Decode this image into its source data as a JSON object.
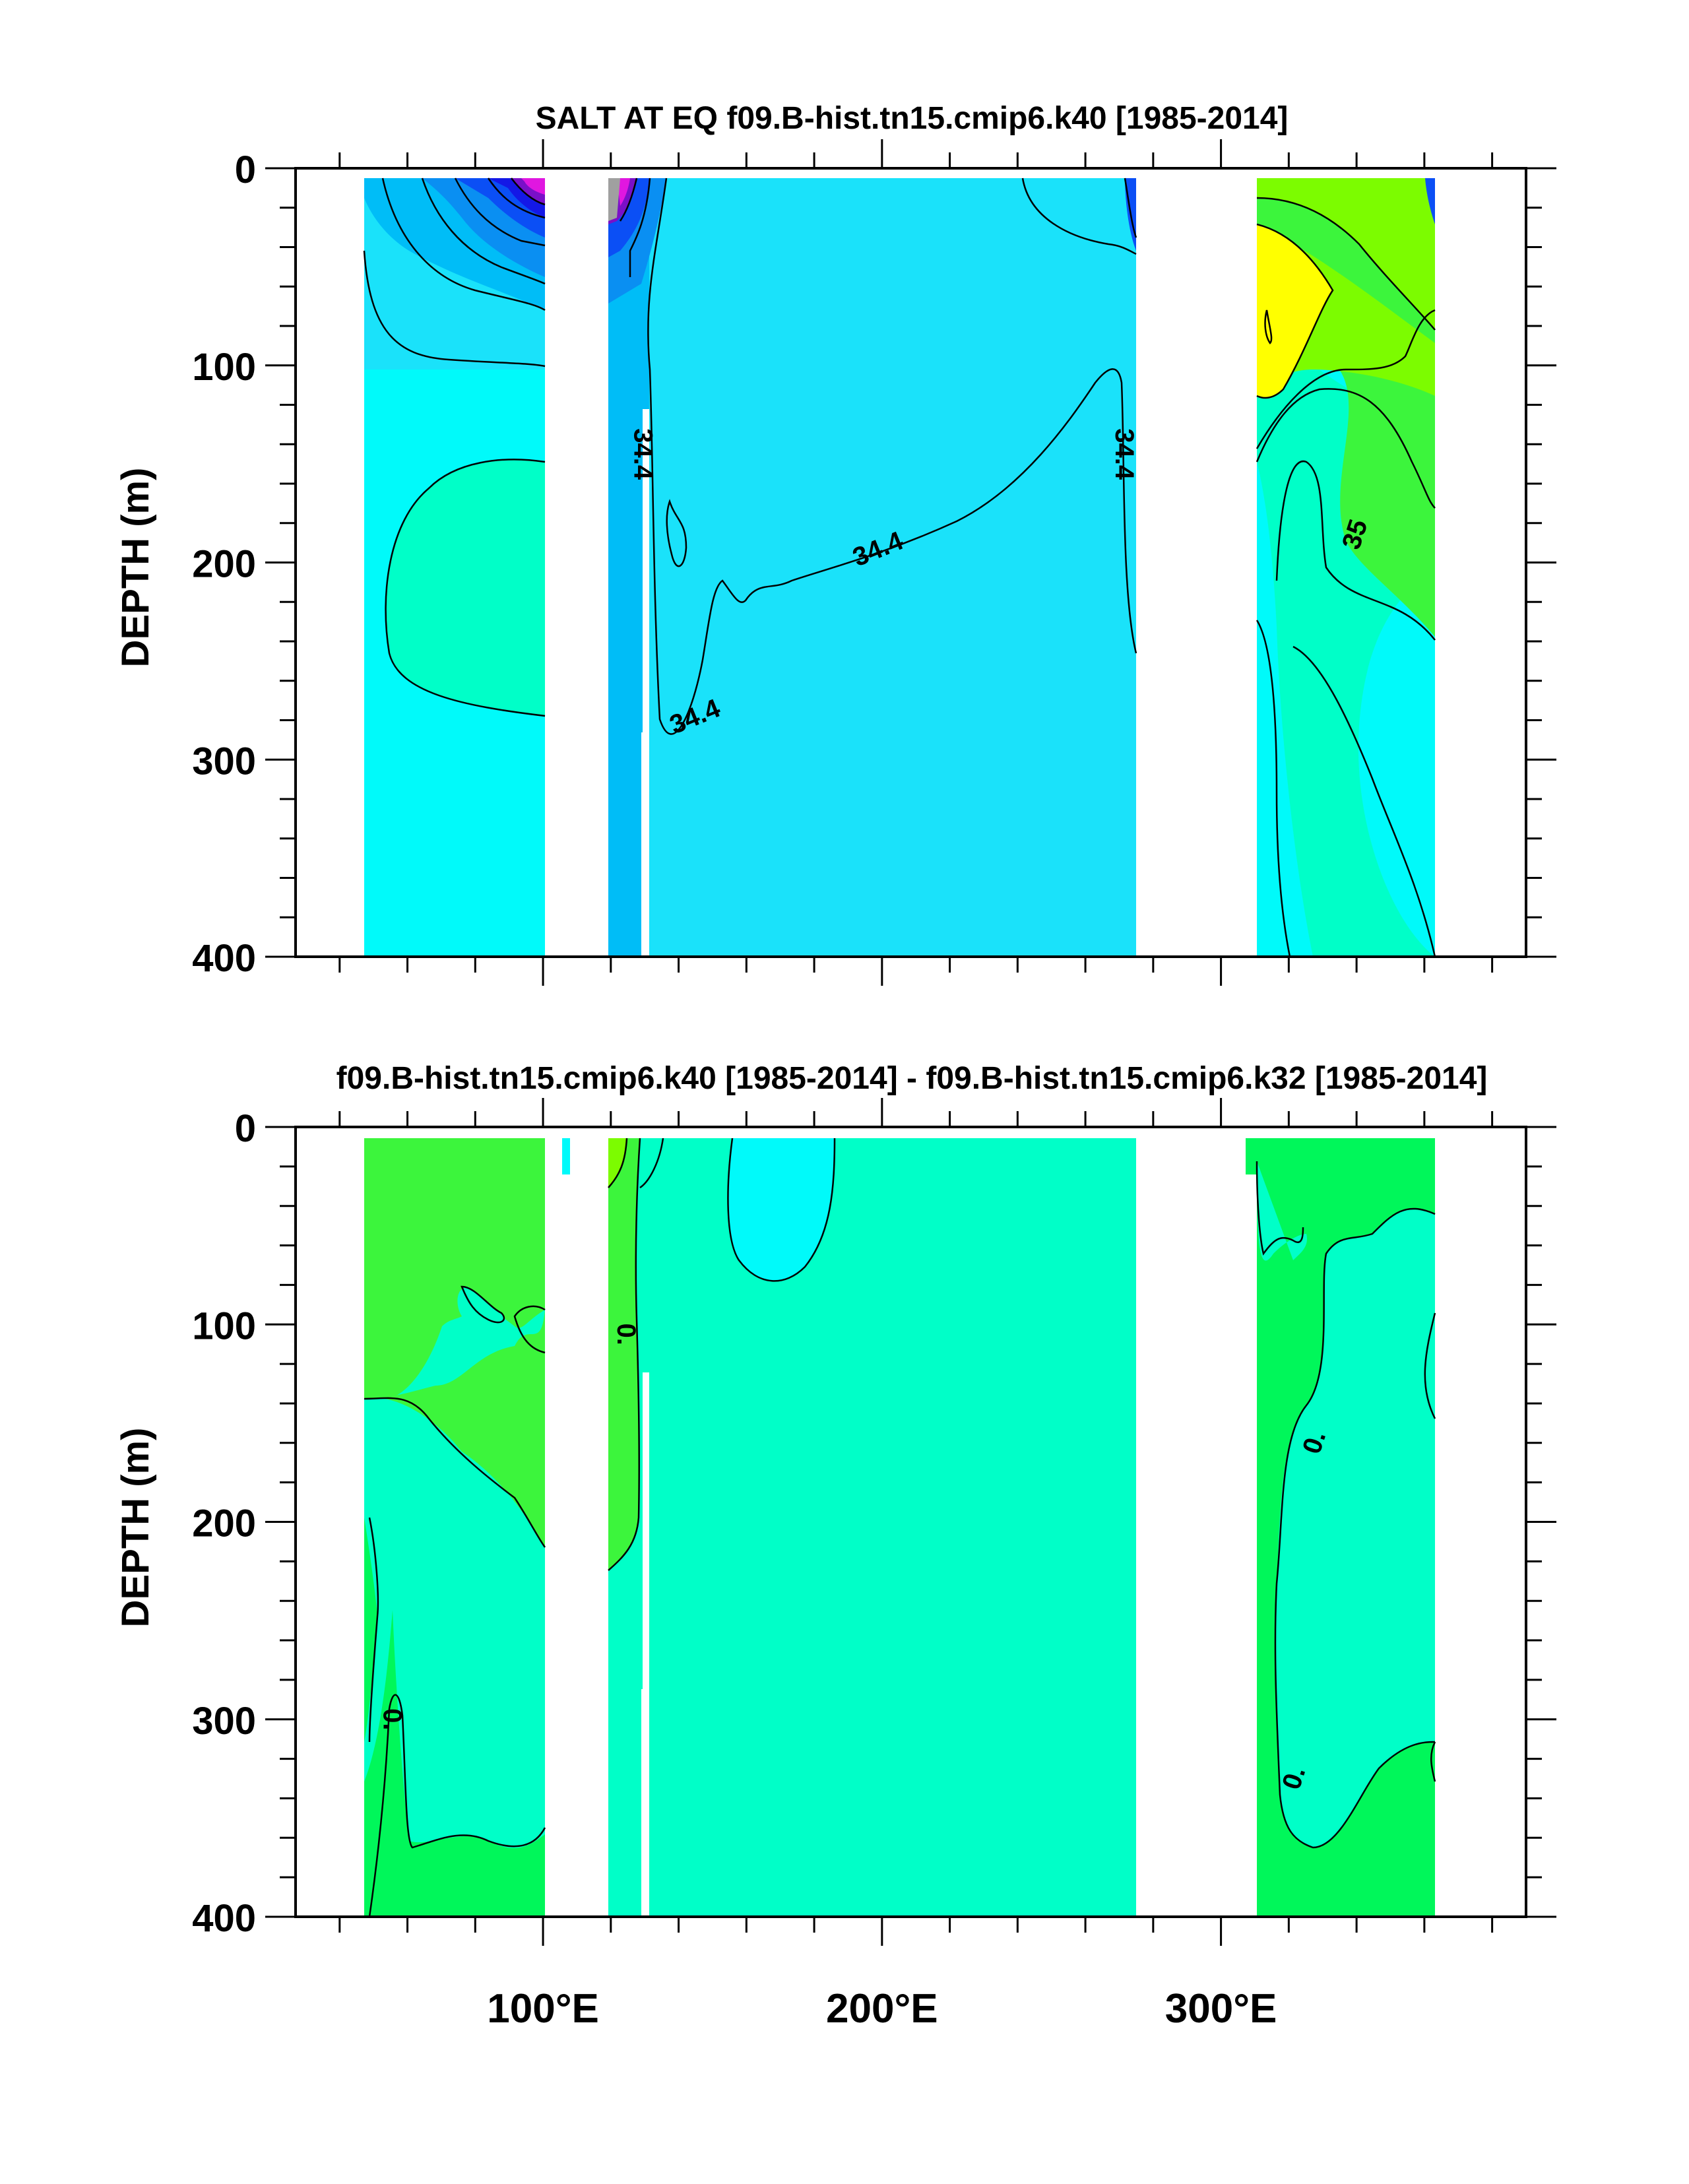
{
  "colors": {
    "background": "#ffffff",
    "cyan": "#00fafa",
    "light_blue": "#1ae2fa",
    "sky_blue": "#00bdf7",
    "mid_blue": "#0a8ff2",
    "blue": "#0b4ff5",
    "navy": "#1418e6",
    "purple": "#7a10c8",
    "magenta": "#e017e0",
    "gray": "#a0a0a0",
    "dark_gray": "#505050",
    "aquamarine": "#00ffc8",
    "teal_green": "#00fa9a",
    "green": "#3cf53c",
    "spring_green": "#00f75a",
    "lime": "#7cfc00",
    "yellow": "#ffff00",
    "contour": "#000000"
  },
  "chart_data": [
    {
      "type": "contour",
      "title": "SALT AT EQ f09.B-hist.tn15.cmip6.k40 [1985-2014]",
      "xlabel": "",
      "ylabel": "DEPTH (m)",
      "xlim": [
        27,
        390
      ],
      "ylim": [
        400,
        0
      ],
      "x_ticks": [
        100,
        200,
        300
      ],
      "x_tick_labels": [
        "",
        "",
        ""
      ],
      "y_ticks": [
        0,
        100,
        200,
        300,
        400
      ],
      "y_tick_labels": [
        "0",
        "100",
        "200",
        "300",
        "400"
      ],
      "land_gaps_lon": [
        [
          98,
          117
        ],
        [
          131,
          131
        ],
        [
          278,
          315
        ]
      ],
      "contour_labels": [
        {
          "text": "34.4",
          "lon": 129,
          "depth": 145,
          "rotate": 90
        },
        {
          "text": "34.4",
          "lon": 271,
          "depth": 145,
          "rotate": 90
        },
        {
          "text": "34.4",
          "lon": 199,
          "depth": 194,
          "rotate": -22
        },
        {
          "text": "34.4",
          "lon": 145,
          "depth": 279,
          "rotate": -22
        },
        {
          "text": "35",
          "lon": 340,
          "depth": 186,
          "rotate": -72
        }
      ]
    },
    {
      "type": "contour",
      "title": "f09.B-hist.tn15.cmip6.k40 [1985-2014] - f09.B-hist.tn15.cmip6.k32 [1985-2014]",
      "xlabel": "",
      "ylabel": "DEPTH (m)",
      "xlim": [
        27,
        390
      ],
      "ylim": [
        400,
        0
      ],
      "x_ticks": [
        100,
        200,
        300
      ],
      "x_tick_labels": [
        "100°E",
        "200°E",
        "300°E"
      ],
      "y_ticks": [
        0,
        100,
        200,
        300,
        400
      ],
      "y_tick_labels": [
        "0",
        "100",
        "200",
        "300",
        "400"
      ],
      "land_gaps_lon": [
        [
          98,
          117
        ],
        [
          131,
          131
        ],
        [
          278,
          315
        ]
      ],
      "contour_labels": [
        {
          "text": "0.",
          "lon": 124,
          "depth": 105,
          "rotate": 90
        },
        {
          "text": "0.",
          "lon": 55,
          "depth": 300,
          "rotate": 90
        },
        {
          "text": "0.",
          "lon": 328,
          "depth": 160,
          "rotate": -72
        },
        {
          "text": "0.",
          "lon": 322,
          "depth": 330,
          "rotate": -72
        }
      ]
    }
  ]
}
